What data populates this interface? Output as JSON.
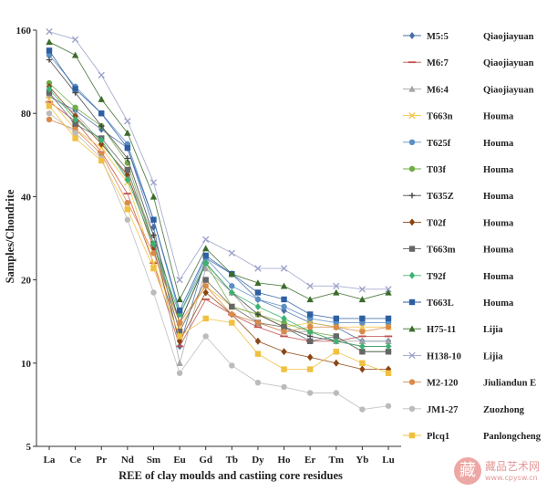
{
  "chart_data": {
    "type": "line",
    "yscale": "log",
    "ylabel": "Samples/Chondrite",
    "xlabel": "REE of clay moulds and castiing core residues",
    "ylim": [
      5,
      160
    ],
    "yticks": [
      5,
      10,
      20,
      40,
      80,
      160
    ],
    "categories": [
      "La",
      "Ce",
      "Pr",
      "Nd",
      "Sm",
      "Eu",
      "Gd",
      "Tb",
      "Dy",
      "Ho",
      "Er",
      "Tm",
      "Yb",
      "Lu"
    ],
    "series": [
      {
        "code": "M5:5",
        "site": "Qiaojiayuan",
        "color": "#4a6fa5",
        "marker": "diamond",
        "values": [
          92,
          82,
          70,
          60,
          31,
          11.5,
          24,
          21,
          17,
          15.5,
          14,
          13.5,
          12,
          12
        ]
      },
      {
        "code": "M6:7",
        "site": "Qiaojiayuan",
        "color": "#c0504d",
        "marker": "dash",
        "values": [
          88,
          75,
          58,
          41,
          23,
          11.5,
          17,
          15,
          13.5,
          12.5,
          12,
          12,
          12.5,
          12.5
        ]
      },
      {
        "code": "M6:4",
        "site": "Qiaojiayuan",
        "color": "#a5a5a5",
        "marker": "triangle",
        "values": [
          93,
          80,
          63,
          47,
          29,
          10,
          22,
          18,
          14,
          13,
          13,
          12,
          12,
          12
        ]
      },
      {
        "code": "T663n",
        "site": "Houma",
        "color": "#f5c242",
        "marker": "x",
        "values": [
          90,
          70,
          60,
          45,
          23,
          13.5,
          19,
          16,
          15,
          13.5,
          14,
          13.5,
          13.5,
          13.5
        ]
      },
      {
        "code": "T625f",
        "site": "Houma",
        "color": "#5b8fc4",
        "marker": "circle",
        "values": [
          130,
          100,
          80,
          62,
          33,
          15,
          24,
          19,
          17,
          16,
          14.5,
          14,
          14,
          14
        ]
      },
      {
        "code": "T03f",
        "site": "Houma",
        "color": "#70ad47",
        "marker": "circle",
        "values": [
          103,
          84,
          72,
          53,
          27,
          14,
          23,
          16,
          15,
          14,
          13,
          12.5,
          11,
          11
        ]
      },
      {
        "code": "T635Z",
        "site": "Houma",
        "color": "#444444",
        "marker": "plus",
        "values": [
          125,
          95,
          72,
          55,
          29,
          14,
          23,
          18,
          15,
          13.5,
          12.5,
          12,
          11.5,
          11.5
        ]
      },
      {
        "code": "T02f",
        "site": "Houma",
        "color": "#8b4513",
        "marker": "diamond",
        "values": [
          100,
          78,
          62,
          48,
          26,
          12,
          18,
          15,
          12,
          11,
          10.5,
          10,
          9.5,
          9.5
        ]
      },
      {
        "code": "T663m",
        "site": "Houma",
        "color": "#666666",
        "marker": "square",
        "values": [
          95,
          73,
          65,
          50,
          27,
          13,
          20,
          16,
          14,
          13.5,
          12,
          12.5,
          11,
          11
        ]
      },
      {
        "code": "T92f",
        "site": "Houma",
        "color": "#3cb371",
        "marker": "diamond",
        "values": [
          98,
          76,
          64,
          46,
          27,
          15,
          23,
          18,
          16,
          14.5,
          13,
          12,
          11.5,
          11.5
        ]
      },
      {
        "code": "T663L",
        "site": "Houma",
        "color": "#2e5fa3",
        "marker": "square",
        "values": [
          135,
          98,
          80,
          60,
          33,
          15.5,
          24.5,
          21,
          18,
          17,
          15,
          14.5,
          14.5,
          14.5
        ]
      },
      {
        "code": "H75-11",
        "site": "Lijia",
        "color": "#3a6b2a",
        "marker": "triangle",
        "values": [
          145,
          130,
          90,
          68,
          40,
          17,
          26,
          21,
          19.5,
          19,
          17,
          18,
          17,
          18
        ]
      },
      {
        "code": "H138-10",
        "site": "Lijia",
        "color": "#9aa0c8",
        "marker": "x",
        "values": [
          158,
          148,
          110,
          75,
          45,
          20,
          28,
          25,
          22,
          22,
          19,
          19,
          18.5,
          18.5
        ]
      },
      {
        "code": "M2-120",
        "site": "Jiuliandun E",
        "color": "#d98a4a",
        "marker": "circle",
        "values": [
          76,
          70,
          57,
          38,
          25,
          14,
          19,
          15,
          14,
          13,
          13.5,
          13.5,
          13,
          13.5
        ]
      },
      {
        "code": "JM1-27",
        "site": "Zuozhong",
        "color": "#bbbbbb",
        "marker": "circle",
        "values": [
          80,
          68,
          55,
          33,
          18,
          9.2,
          12.5,
          9.8,
          8.5,
          8.2,
          7.8,
          7.8,
          6.8,
          7
        ]
      },
      {
        "code": "Plcq1",
        "site": "Panlongcheng",
        "color": "#f0c040",
        "marker": "square",
        "values": [
          85,
          65,
          54,
          36,
          22,
          12.5,
          14.5,
          14,
          10.8,
          9.5,
          9.5,
          11,
          10,
          9.2
        ]
      }
    ]
  },
  "watermark": {
    "symbol": "藏",
    "title": "藏品艺术网",
    "url": "www.cpysw.cn"
  }
}
